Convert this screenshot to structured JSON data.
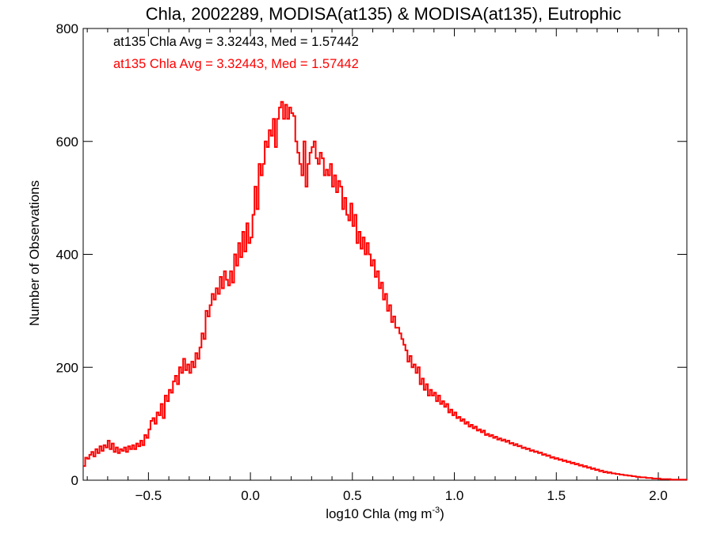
{
  "chart_data": {
    "type": "histogram-step",
    "title": "Chla, 2002289, MODISA(at135) & MODISA(at135), Eutrophic",
    "xlabel": "log10 Chla (mg m",
    "xlabel_sup": "-3",
    "xlabel_suffix": ")",
    "ylabel": "Number of Observations",
    "xlim": [
      -0.82,
      2.14
    ],
    "ylim": [
      0,
      800
    ],
    "x_ticks": [
      -0.5,
      0.0,
      0.5,
      1.0,
      1.5,
      2.0
    ],
    "x_tick_labels": [
      "−0.5",
      "0.0",
      "0.5",
      "1.0",
      "1.5",
      "2.0"
    ],
    "y_ticks": [
      0,
      200,
      400,
      600,
      800
    ],
    "y_tick_labels": [
      "0",
      "200",
      "400",
      "600",
      "800"
    ],
    "grid": false,
    "bin_width": 0.01,
    "annotations": [
      {
        "text": "at135 Chla Avg = 3.32443, Med = 1.57442",
        "color": "#000000"
      },
      {
        "text": "at135 Chla Avg = 3.32443, Med = 1.57442",
        "color": "#ff0000"
      }
    ],
    "series": [
      {
        "color": "#ff0000",
        "x_start": -0.82,
        "values": [
          25,
          40,
          38,
          45,
          50,
          42,
          55,
          48,
          60,
          52,
          62,
          58,
          70,
          55,
          65,
          50,
          58,
          48,
          55,
          52,
          58,
          50,
          60,
          55,
          62,
          55,
          65,
          60,
          70,
          62,
          80,
          75,
          90,
          105,
          110,
          100,
          120,
          115,
          135,
          110,
          150,
          140,
          160,
          155,
          175,
          185,
          170,
          200,
          190,
          215,
          195,
          205,
          190,
          210,
          200,
          225,
          215,
          235,
          260,
          250,
          300,
          290,
          310,
          330,
          320,
          340,
          330,
          360,
          340,
          370,
          355,
          345,
          370,
          350,
          400,
          380,
          420,
          395,
          440,
          405,
          455,
          420,
          430,
          470,
          520,
          480,
          560,
          540,
          560,
          600,
          590,
          620,
          610,
          640,
          590,
          640,
          660,
          670,
          640,
          665,
          640,
          660,
          650,
          645,
          600,
          580,
          560,
          540,
          600,
          520,
          560,
          580,
          590,
          600,
          570,
          560,
          580,
          570,
          540,
          550,
          540,
          560,
          520,
          540,
          510,
          530,
          520,
          480,
          500,
          470,
          460,
          490,
          450,
          470,
          420,
          440,
          410,
          430,
          400,
          420,
          400,
          380,
          390,
          360,
          370,
          340,
          350,
          320,
          330,
          300,
          310,
          280,
          290,
          270,
          270,
          260,
          250,
          240,
          230,
          210,
          220,
          200,
          205,
          190,
          200,
          170,
          180,
          160,
          170,
          150,
          160,
          150,
          155,
          140,
          150,
          135,
          140,
          130,
          135,
          120,
          125,
          115,
          120,
          110,
          112,
          105,
          108,
          100,
          103,
          95,
          98,
          92,
          95,
          88,
          90,
          85,
          88,
          80,
          82,
          78,
          80,
          75,
          77,
          72,
          74,
          70,
          72,
          68,
          70,
          65,
          66,
          62,
          64,
          60,
          61,
          57,
          58,
          55,
          56,
          52,
          53,
          50,
          51,
          48,
          49,
          45,
          46,
          43,
          44,
          40,
          41,
          38,
          39,
          36,
          37,
          34,
          35,
          32,
          33,
          30,
          31,
          28,
          29,
          26,
          27,
          24,
          25,
          22,
          23,
          20,
          21,
          18,
          19,
          16,
          17,
          14,
          15,
          13,
          14,
          12,
          12,
          11,
          11,
          10,
          10,
          9,
          9,
          8,
          8,
          7,
          7,
          6,
          6,
          5,
          5,
          5,
          4,
          4,
          4,
          3,
          3,
          3,
          3,
          2,
          2,
          2,
          2,
          2,
          1,
          1,
          1,
          1,
          1,
          1,
          1,
          1,
          1,
          1,
          1,
          1,
          1,
          1,
          1,
          1,
          1,
          1,
          1,
          1,
          1,
          1,
          1,
          1,
          1,
          1,
          1,
          1
        ]
      }
    ]
  }
}
